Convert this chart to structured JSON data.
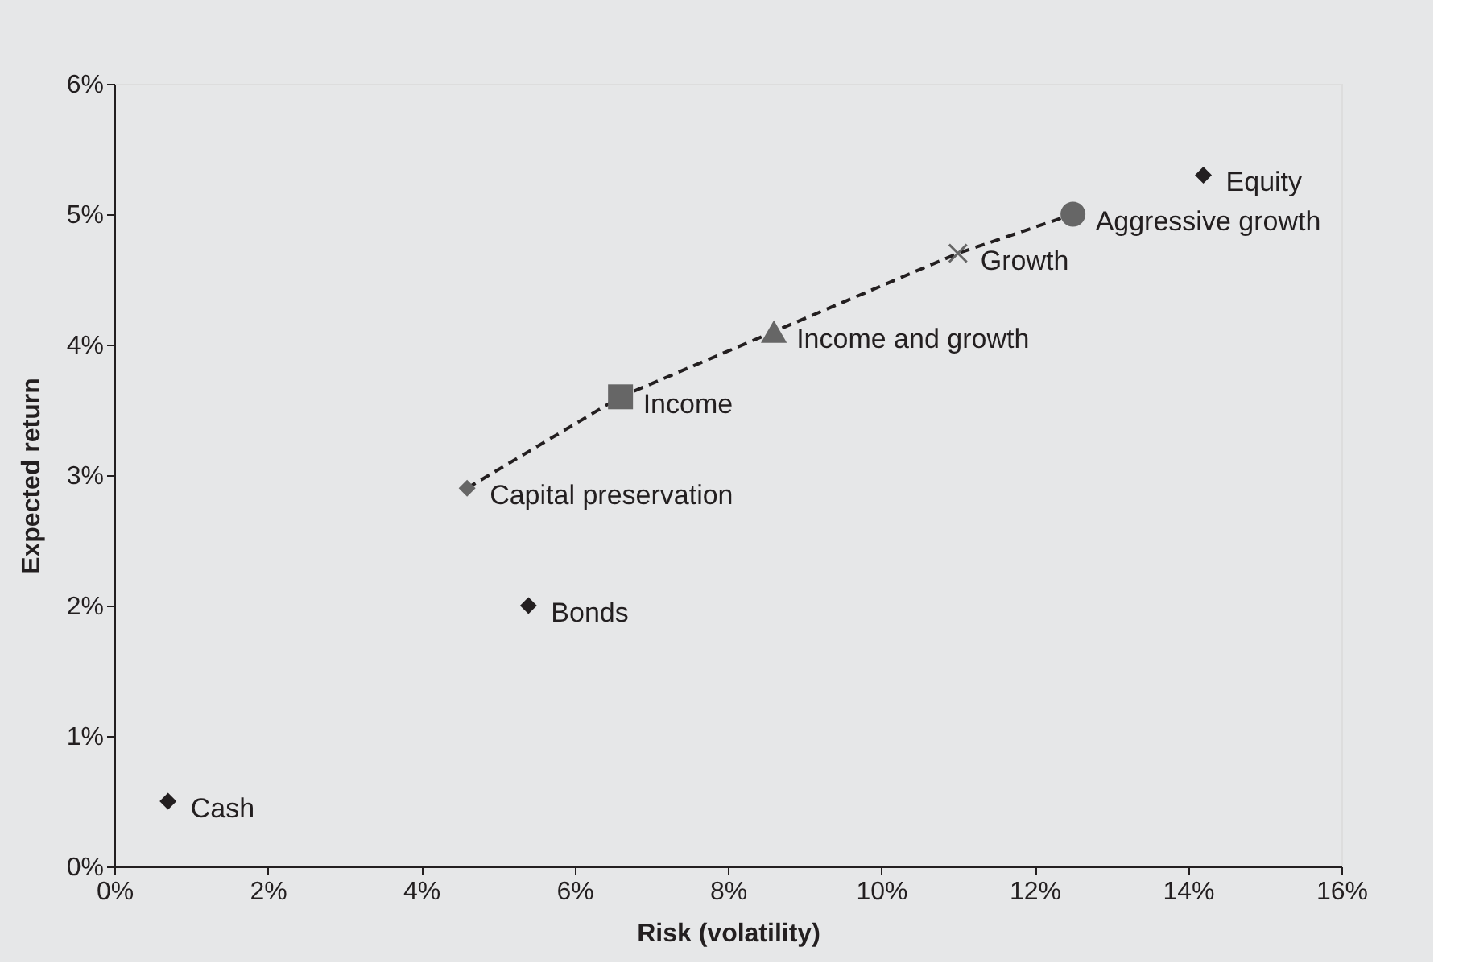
{
  "chart_data": {
    "type": "scatter",
    "xlabel": "Risk (volatility)",
    "ylabel": "Expected return",
    "xlim": [
      0,
      16
    ],
    "ylim": [
      0,
      6
    ],
    "xticks": [
      {
        "value": 0,
        "label": "0%"
      },
      {
        "value": 2,
        "label": "2%"
      },
      {
        "value": 4,
        "label": "4%"
      },
      {
        "value": 6,
        "label": "6%"
      },
      {
        "value": 8,
        "label": "8%"
      },
      {
        "value": 10,
        "label": "10%"
      },
      {
        "value": 12,
        "label": "12%"
      },
      {
        "value": 14,
        "label": "14%"
      },
      {
        "value": 16,
        "label": "16%"
      }
    ],
    "yticks": [
      {
        "value": 0,
        "label": "0%"
      },
      {
        "value": 1,
        "label": "1%"
      },
      {
        "value": 2,
        "label": "2%"
      },
      {
        "value": 3,
        "label": "3%"
      },
      {
        "value": 4,
        "label": "4%"
      },
      {
        "value": 5,
        "label": "5%"
      },
      {
        "value": 6,
        "label": "6%"
      }
    ],
    "grid": false,
    "legend": false,
    "series": [
      {
        "type": "line",
        "color": "#231f20",
        "marker": "none",
        "line_style": "dashed",
        "x": [
          4.6,
          6.6,
          8.6,
          11.0,
          12.5
        ],
        "values": [
          2.9,
          3.6,
          4.1,
          4.7,
          5.0
        ]
      },
      {
        "name": "Cash",
        "color": "#231f20",
        "marker": "diamond",
        "x": [
          0.7
        ],
        "values": [
          0.5
        ]
      },
      {
        "name": "Bonds",
        "color": "#231f20",
        "marker": "diamond",
        "x": [
          5.4
        ],
        "values": [
          2.0
        ]
      },
      {
        "name": "Capital preservation",
        "color": "#666666",
        "marker": "diamond",
        "x": [
          4.6
        ],
        "values": [
          2.9
        ]
      },
      {
        "name": "Income",
        "color": "#666666",
        "marker": "square",
        "x": [
          6.6
        ],
        "values": [
          3.6
        ]
      },
      {
        "name": "Income and growth",
        "color": "#666666",
        "marker": "triangle",
        "x": [
          8.6
        ],
        "values": [
          4.1
        ]
      },
      {
        "name": "Growth",
        "color": "#666666",
        "marker": "cross",
        "x": [
          11.0
        ],
        "values": [
          4.7
        ]
      },
      {
        "name": "Aggressive growth",
        "color": "#666666",
        "marker": "circle",
        "x": [
          12.5
        ],
        "values": [
          5.0
        ]
      },
      {
        "name": "Equity",
        "color": "#231f20",
        "marker": "diamond",
        "x": [
          14.2
        ],
        "values": [
          5.3
        ]
      }
    ]
  }
}
